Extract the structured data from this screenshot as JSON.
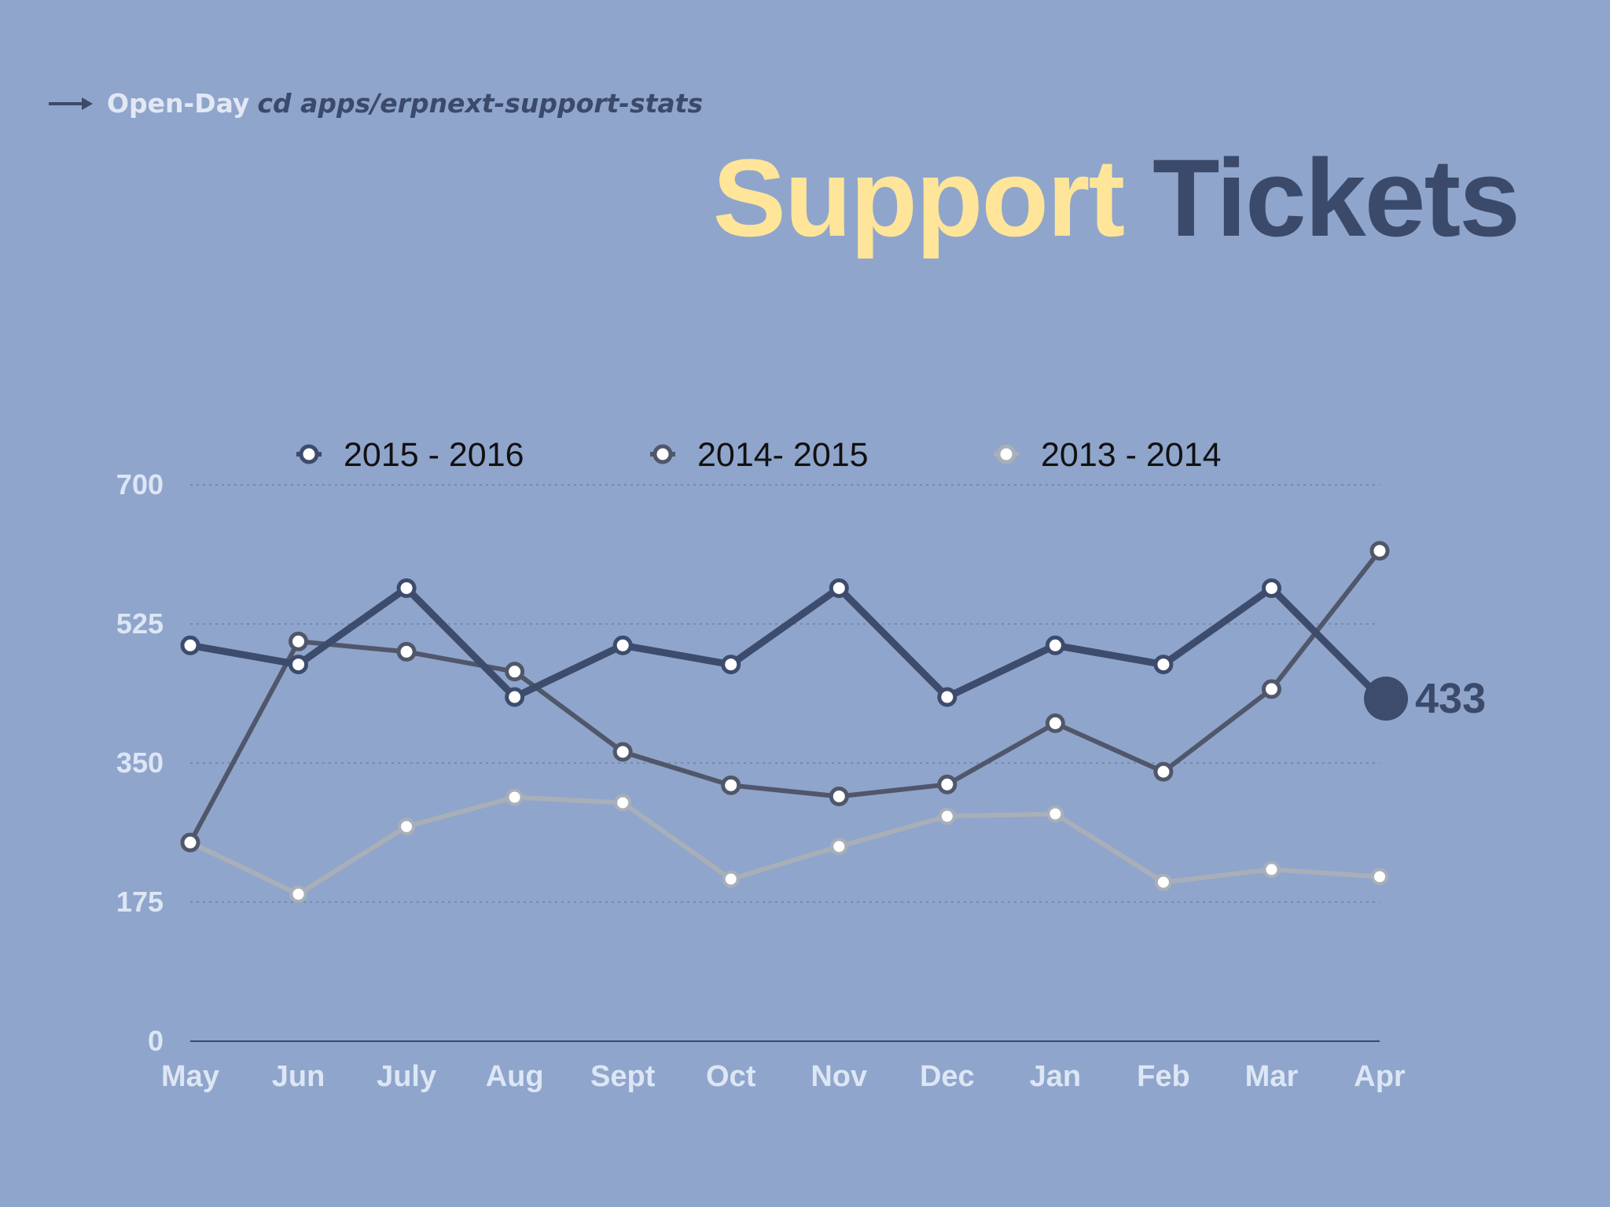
{
  "header": {
    "app_name": "Open-Day",
    "path": "cd apps/erpnext-support-stats",
    "icon": "arrow-right-icon"
  },
  "title": {
    "part1": "Support",
    "part2": "Tickets"
  },
  "colors": {
    "background": "#8fa5cb",
    "title_accent": "#ffe59a",
    "title_dark": "#3b4a6b"
  },
  "chart_data": {
    "type": "line",
    "categories": [
      "May",
      "Jun",
      "July",
      "Aug",
      "Sept",
      "Oct",
      "Nov",
      "Dec",
      "Jan",
      "Feb",
      "Mar",
      "Apr"
    ],
    "y_ticks": [
      "0",
      "175",
      "350",
      "525",
      "700"
    ],
    "ylim": [
      0,
      700
    ],
    "grid": true,
    "legend_position": "top",
    "series": [
      {
        "name": "2015 - 2016",
        "color": "#3d4b6c",
        "values": [
          498,
          474,
          570,
          433,
          498,
          474,
          570,
          433,
          498,
          474,
          570,
          433
        ]
      },
      {
        "name": "2014- 2015",
        "color": "#50576a",
        "values": [
          250,
          503,
          490,
          465,
          364,
          322,
          308,
          323,
          400,
          339,
          443,
          617
        ]
      },
      {
        "name": "2013 - 2014",
        "color": "#a9afb9",
        "values": [
          250,
          185,
          270,
          307,
          300,
          204,
          245,
          283,
          286,
          200,
          216,
          207
        ]
      }
    ],
    "end_label": "433"
  }
}
